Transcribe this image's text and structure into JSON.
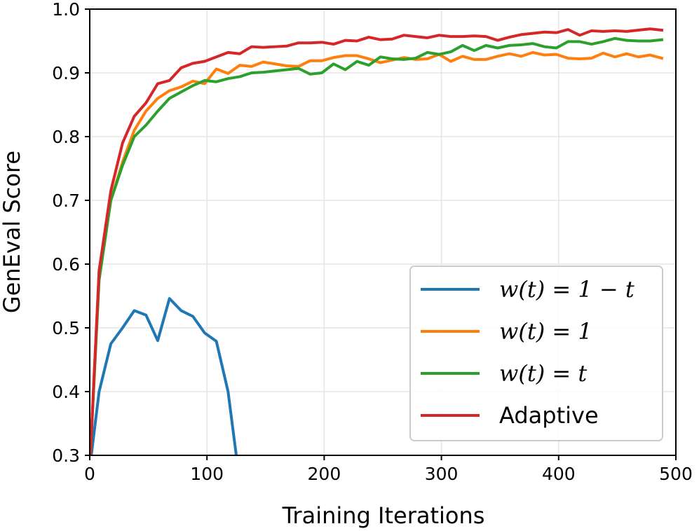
{
  "chart_data": {
    "type": "line",
    "title": "",
    "xlabel": "Training Iterations",
    "ylabel": "GenEval Score",
    "xlim": [
      0,
      500
    ],
    "ylim": [
      0.3,
      1.0
    ],
    "xticks": [
      0,
      100,
      200,
      300,
      400,
      500
    ],
    "xtick_labels": [
      "0",
      "100",
      "200",
      "300",
      "400",
      "500"
    ],
    "yticks": [
      0.3,
      0.4,
      0.5,
      0.6,
      0.7,
      0.8,
      0.9,
      1.0
    ],
    "ytick_labels": [
      "0.3",
      "0.4",
      "0.5",
      "0.6",
      "0.7",
      "0.8",
      "0.9",
      "1.0"
    ],
    "grid": true,
    "legend_position": "lower-right",
    "series": [
      {
        "name": "w(t) = 1 − t",
        "color": "#1f77b4",
        "x": [
          0,
          8,
          18,
          28,
          38,
          48,
          58,
          68,
          78,
          88,
          98,
          108,
          118,
          125
        ],
        "y": [
          0.28,
          0.4,
          0.475,
          0.5,
          0.527,
          0.52,
          0.48,
          0.546,
          0.527,
          0.518,
          0.492,
          0.479,
          0.4,
          0.3
        ]
      },
      {
        "name": "w(t) = 1",
        "color": "#ff7f0e",
        "x": [
          0,
          8,
          18,
          28,
          38,
          48,
          58,
          68,
          78,
          88,
          98,
          108,
          118,
          128,
          138,
          148,
          158,
          168,
          178,
          188,
          198,
          208,
          218,
          228,
          238,
          248,
          258,
          268,
          278,
          288,
          298,
          308,
          318,
          328,
          338,
          348,
          358,
          368,
          378,
          388,
          398,
          408,
          418,
          428,
          438,
          448,
          458,
          468,
          478,
          488
        ],
        "y": [
          0.28,
          0.59,
          0.7,
          0.76,
          0.81,
          0.84,
          0.86,
          0.872,
          0.878,
          0.887,
          0.883,
          0.906,
          0.899,
          0.912,
          0.91,
          0.917,
          0.914,
          0.911,
          0.91,
          0.919,
          0.919,
          0.924,
          0.927,
          0.927,
          0.922,
          0.916,
          0.92,
          0.924,
          0.921,
          0.922,
          0.929,
          0.918,
          0.926,
          0.921,
          0.921,
          0.926,
          0.93,
          0.926,
          0.932,
          0.928,
          0.929,
          0.923,
          0.922,
          0.923,
          0.931,
          0.925,
          0.93,
          0.925,
          0.928,
          0.923
        ]
      },
      {
        "name": "w(t) = t",
        "color": "#2ca02c",
        "x": [
          0,
          8,
          18,
          28,
          38,
          48,
          58,
          68,
          78,
          88,
          98,
          108,
          118,
          128,
          138,
          148,
          158,
          168,
          178,
          188,
          198,
          208,
          218,
          228,
          238,
          248,
          258,
          268,
          278,
          288,
          298,
          308,
          318,
          328,
          338,
          348,
          358,
          368,
          378,
          388,
          398,
          408,
          418,
          428,
          438,
          448,
          458,
          468,
          478,
          488
        ],
        "y": [
          0.28,
          0.575,
          0.7,
          0.755,
          0.8,
          0.818,
          0.84,
          0.86,
          0.87,
          0.88,
          0.888,
          0.886,
          0.891,
          0.894,
          0.9,
          0.901,
          0.903,
          0.905,
          0.907,
          0.898,
          0.9,
          0.914,
          0.905,
          0.918,
          0.912,
          0.925,
          0.922,
          0.921,
          0.923,
          0.932,
          0.929,
          0.933,
          0.943,
          0.935,
          0.943,
          0.939,
          0.943,
          0.944,
          0.946,
          0.941,
          0.939,
          0.949,
          0.949,
          0.945,
          0.949,
          0.954,
          0.951,
          0.95,
          0.95,
          0.952
        ]
      },
      {
        "name": "Adaptive",
        "color": "#d62728",
        "x": [
          0,
          8,
          18,
          28,
          38,
          48,
          58,
          68,
          78,
          88,
          98,
          108,
          118,
          128,
          138,
          148,
          158,
          168,
          178,
          188,
          198,
          208,
          218,
          228,
          238,
          248,
          258,
          268,
          278,
          288,
          298,
          308,
          318,
          328,
          338,
          348,
          358,
          368,
          378,
          388,
          398,
          408,
          418,
          428,
          438,
          448,
          458,
          468,
          478,
          488
        ],
        "y": [
          0.28,
          0.59,
          0.715,
          0.79,
          0.832,
          0.853,
          0.883,
          0.888,
          0.908,
          0.915,
          0.918,
          0.925,
          0.932,
          0.93,
          0.941,
          0.94,
          0.941,
          0.942,
          0.947,
          0.947,
          0.948,
          0.945,
          0.951,
          0.95,
          0.956,
          0.952,
          0.953,
          0.959,
          0.957,
          0.955,
          0.959,
          0.957,
          0.957,
          0.958,
          0.957,
          0.951,
          0.956,
          0.96,
          0.962,
          0.964,
          0.963,
          0.968,
          0.959,
          0.966,
          0.965,
          0.966,
          0.965,
          0.967,
          0.969,
          0.967
        ]
      }
    ]
  },
  "legend": {
    "items": [
      {
        "prefix": "w",
        "rest": "(t) = 1 − t",
        "color": "#1f77b4"
      },
      {
        "prefix": "w",
        "rest": "(t) = 1",
        "color": "#ff7f0e"
      },
      {
        "prefix": "w",
        "rest": "(t) = t",
        "color": "#2ca02c"
      },
      {
        "prefix": "",
        "rest": "Adaptive",
        "color": "#d62728"
      }
    ]
  }
}
